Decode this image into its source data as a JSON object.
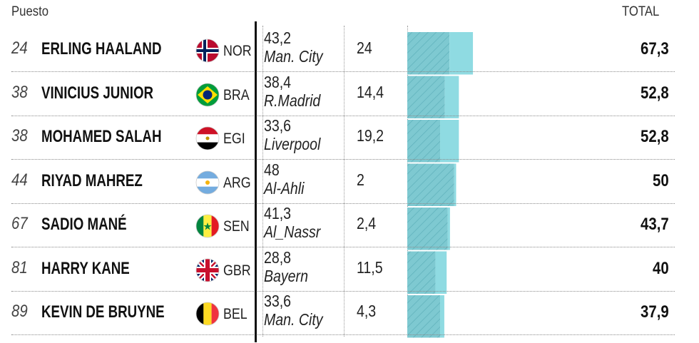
{
  "header": {
    "rank_label": "Puesto",
    "total_label": "TOTAL"
  },
  "chart_data": {
    "type": "table",
    "columns": [
      "Puesto",
      "",
      "",
      "",
      "",
      "TOTAL"
    ],
    "rows": [
      {
        "rank": "24",
        "name": "ERLING HAALAND",
        "country": "NOR",
        "flag_icon": "norway-flag-icon",
        "v1": "43,2",
        "club": "Man. City",
        "v2": "24",
        "total": "67,3"
      },
      {
        "rank": "38",
        "name": "VINICIUS JUNIOR",
        "country": "BRA",
        "flag_icon": "brazil-flag-icon",
        "v1": "38,4",
        "club": "R.Madrid",
        "v2": "14,4",
        "total": "52,8"
      },
      {
        "rank": "38",
        "name": "MOHAMED SALAH",
        "country": "EGI",
        "flag_icon": "egypt-flag-icon",
        "v1": "33,6",
        "club": "Liverpool",
        "v2": "19,2",
        "total": "52,8"
      },
      {
        "rank": "44",
        "name": "RIYAD MAHREZ",
        "country": "ARG",
        "flag_icon": "argentina-flag-icon",
        "v1": "48",
        "club": "Al-Ahli",
        "v2": "2",
        "total": "50"
      },
      {
        "rank": "67",
        "name": "SADIO MANÉ",
        "country": "SEN",
        "flag_icon": "senegal-flag-icon",
        "v1": "41,3",
        "club": "Al_Nassr",
        "v2": "2,4",
        "total": "43,7"
      },
      {
        "rank": "81",
        "name": "HARRY KANE",
        "country": "GBR",
        "flag_icon": "uk-flag-icon",
        "v1": "28,8",
        "club": "Bayern",
        "v2": "11,5",
        "total": "40"
      },
      {
        "rank": "89",
        "name": "KEVIN DE BRUYNE",
        "country": "BEL",
        "flag_icon": "belgium-flag-icon",
        "v1": "33,6",
        "club": "Man. City",
        "v2": "4,3",
        "total": "37,9"
      }
    ],
    "bar_series": [
      {
        "values": [
          43.2,
          38.4,
          33.6,
          48,
          41.3,
          28.8,
          33.6
        ],
        "color": "#7ec9d1",
        "pattern": "hatched"
      },
      {
        "values": [
          24,
          14.4,
          19.2,
          2,
          2.4,
          11.5,
          4.3
        ],
        "color": "#8fdbe2"
      }
    ],
    "grid": true
  }
}
